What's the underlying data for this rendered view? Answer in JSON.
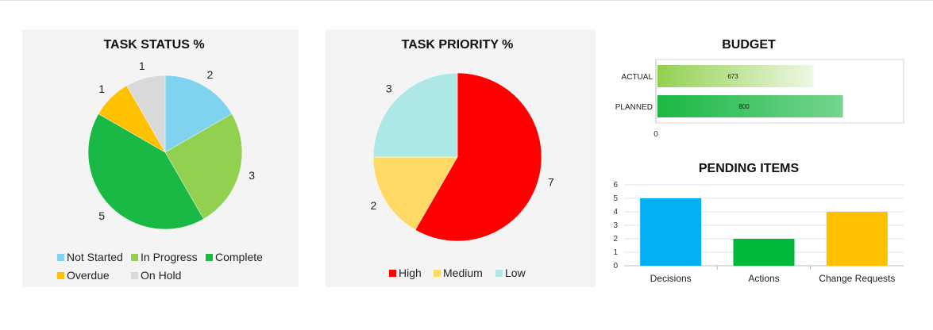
{
  "chart_data": [
    {
      "type": "pie",
      "title": "TASK STATUS %",
      "categories": [
        "Not Started",
        "In Progress",
        "Complete",
        "Overdue",
        "On Hold"
      ],
      "values": [
        2,
        3,
        5,
        1,
        1
      ],
      "colors": [
        "#7fd3ef",
        "#92d050",
        "#1ab844",
        "#ffc000",
        "#d9d9d9"
      ],
      "legend": "bottom"
    },
    {
      "type": "pie",
      "title": "TASK PRIORITY %",
      "categories": [
        "High",
        "Medium",
        "Low"
      ],
      "values": [
        7,
        2,
        3
      ],
      "colors": [
        "#ff0000",
        "#ffd966",
        "#aee8e6"
      ],
      "legend": "bottom"
    },
    {
      "type": "bar",
      "orientation": "horizontal",
      "title": "BUDGET",
      "categories": [
        "ACTUAL",
        "PLANNED"
      ],
      "values": [
        673,
        800
      ],
      "colors": [
        "#92d050",
        "#1ab844"
      ],
      "xlim": [
        0,
        1000
      ],
      "xticks": [
        "0"
      ],
      "grid": false
    },
    {
      "type": "bar",
      "title": "PENDING ITEMS",
      "categories": [
        "Decisions",
        "Actions",
        "Change Requests"
      ],
      "values": [
        5,
        2,
        4
      ],
      "colors": [
        "#00b0f0",
        "#00b83c",
        "#ffc000"
      ],
      "ylim": [
        0,
        6
      ],
      "yticks": [
        0,
        1,
        2,
        3,
        4,
        5,
        6
      ],
      "grid": true
    }
  ]
}
